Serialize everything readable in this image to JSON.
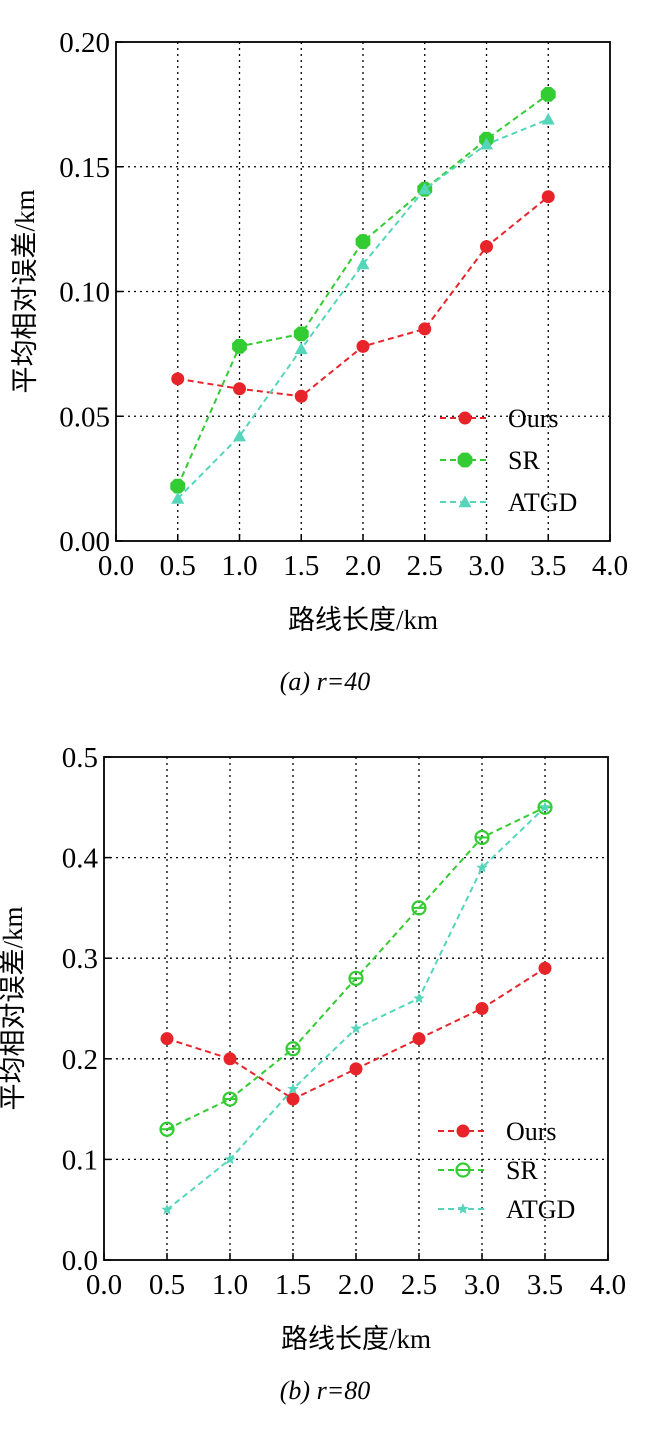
{
  "chart_data": [
    {
      "type": "line",
      "caption": "(a) r=40",
      "xlabel": "路线长度/km",
      "ylabel": "平均相对误差/km",
      "xlim": [
        0.0,
        4.0
      ],
      "ylim": [
        0.0,
        0.2
      ],
      "xticks": [
        "0.0",
        "0.5",
        "1.0",
        "1.5",
        "2.0",
        "2.5",
        "3.0",
        "3.5",
        "4.0"
      ],
      "yticks": [
        "0.00",
        "0.05",
        "0.10",
        "0.15",
        "0.20"
      ],
      "grid": true,
      "legend_position": "bottom-right",
      "x": [
        0.5,
        1.0,
        1.5,
        2.0,
        2.5,
        3.0,
        3.5
      ],
      "series": [
        {
          "name": "Ours",
          "color": "#e8242b",
          "marker": "circle",
          "values": [
            0.065,
            0.061,
            0.058,
            0.078,
            0.085,
            0.118,
            0.138
          ]
        },
        {
          "name": "SR",
          "color": "#33cc33",
          "marker": "octagon",
          "values": [
            0.022,
            0.078,
            0.083,
            0.12,
            0.141,
            0.161,
            0.179
          ]
        },
        {
          "name": "ATGD",
          "color": "#55d6bb",
          "marker": "triangle",
          "values": [
            0.017,
            0.042,
            0.077,
            0.111,
            0.141,
            0.159,
            0.169
          ]
        }
      ]
    },
    {
      "type": "line",
      "caption": "(b) r=80",
      "xlabel": "路线长度/km",
      "ylabel": "平均相对误差/km",
      "xlim": [
        0.0,
        4.0
      ],
      "ylim": [
        0.0,
        0.5
      ],
      "xticks": [
        "0.0",
        "0.5",
        "1.0",
        "1.5",
        "2.0",
        "2.5",
        "3.0",
        "3.5",
        "4.0"
      ],
      "yticks": [
        "0.0",
        "0.1",
        "0.2",
        "0.3",
        "0.4",
        "0.5"
      ],
      "grid": true,
      "legend_position": "bottom-right",
      "x": [
        0.5,
        1.0,
        1.5,
        2.0,
        2.5,
        3.0,
        3.5
      ],
      "series": [
        {
          "name": "Ours",
          "color": "#e8242b",
          "marker": "circle",
          "values": [
            0.22,
            0.2,
            0.16,
            0.19,
            0.22,
            0.25,
            0.29
          ]
        },
        {
          "name": "SR",
          "color": "#33cc33",
          "marker": "open-circle",
          "values": [
            0.13,
            0.16,
            0.21,
            0.28,
            0.35,
            0.42,
            0.45
          ]
        },
        {
          "name": "ATGD",
          "color": "#55d6bb",
          "marker": "star",
          "values": [
            0.05,
            0.1,
            0.17,
            0.23,
            0.26,
            0.39,
            0.45
          ]
        }
      ]
    }
  ]
}
